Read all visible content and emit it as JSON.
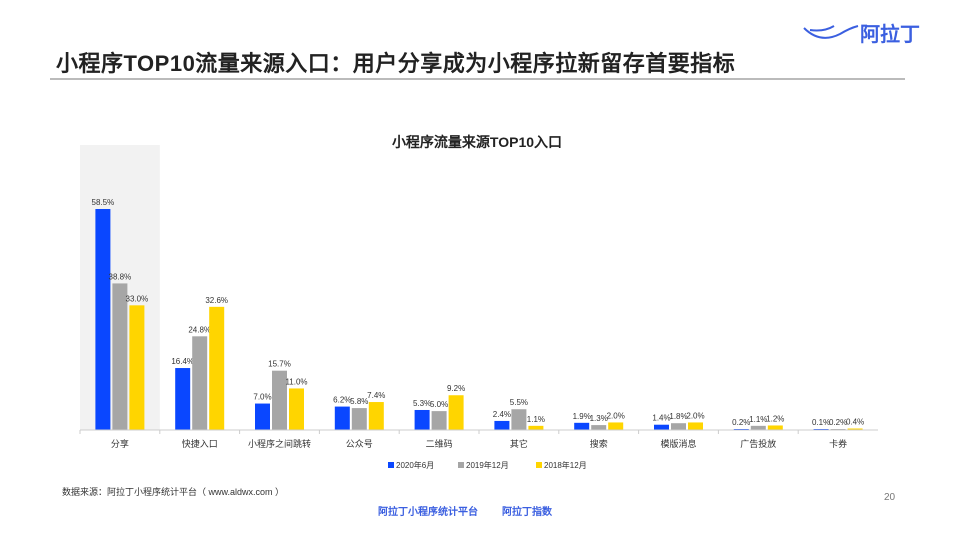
{
  "header": {
    "title": "小程序TOP10流量来源入口：用户分享成为小程序拉新留存首要指标",
    "logo_text": "阿拉丁"
  },
  "source": "数据来源：阿拉丁小程序统计平台（ www.aldwx.com ）",
  "page_number": "20",
  "footer": {
    "brand1": "阿拉丁小程序统计平台",
    "brand2": "阿拉丁指数"
  },
  "chart_data": {
    "type": "bar",
    "title": "小程序流量来源TOP10入口",
    "categories": [
      "分享",
      "快捷入口",
      "小程序之间跳转",
      "公众号",
      "二维码",
      "其它",
      "搜索",
      "模版消息",
      "广告投放",
      "卡券"
    ],
    "series": [
      {
        "name": "2020年6月",
        "color": "#0a47ff",
        "values": [
          58.5,
          16.4,
          7.0,
          6.2,
          5.3,
          2.4,
          1.9,
          1.4,
          0.2,
          0.1
        ]
      },
      {
        "name": "2019年12月",
        "color": "#a6a6a6",
        "values": [
          38.8,
          24.8,
          15.7,
          5.8,
          5.0,
          5.5,
          1.3,
          1.8,
          1.1,
          0.2
        ]
      },
      {
        "name": "2018年12月",
        "color": "#ffd500",
        "values": [
          33.0,
          32.6,
          11.0,
          7.4,
          9.2,
          1.1,
          2.0,
          2.0,
          1.2,
          0.4
        ]
      }
    ],
    "ylim": [
      0,
      75
    ],
    "highlight_category": "分享",
    "legend_position": "bottom",
    "grid": false
  }
}
